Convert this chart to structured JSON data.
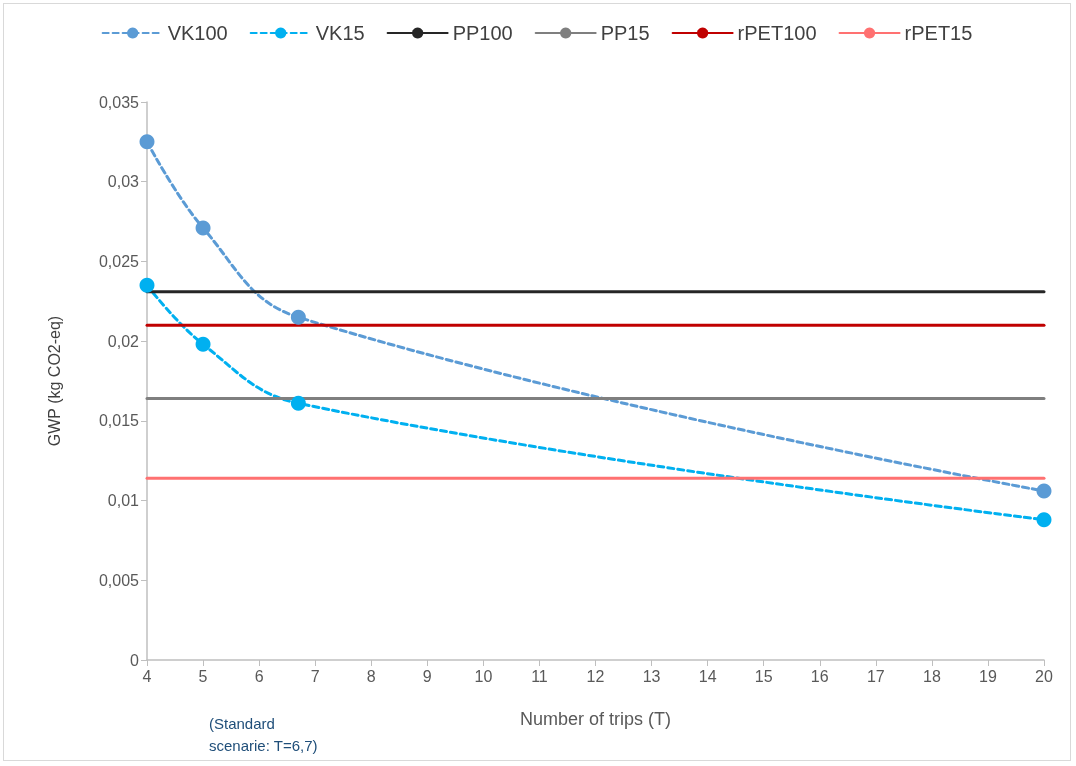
{
  "chart_data": {
    "type": "line",
    "xlabel": "Number of trips (T)",
    "ylabel": "GWP (kg CO2-eq)",
    "annotations": [
      "(Standard scenarie: T=6,7)"
    ],
    "xlim": [
      4,
      20
    ],
    "xticks": [
      4,
      5,
      6,
      7,
      8,
      9,
      10,
      11,
      12,
      13,
      14,
      15,
      16,
      17,
      18,
      19,
      20
    ],
    "ylim": [
      0,
      0.035
    ],
    "yticks": [
      {
        "value": 0,
        "label": "0"
      },
      {
        "value": 0.005,
        "label": "0,005"
      },
      {
        "value": 0.01,
        "label": "0,01"
      },
      {
        "value": 0.015,
        "label": "0,015"
      },
      {
        "value": 0.02,
        "label": "0,02"
      },
      {
        "value": 0.025,
        "label": "0,025"
      },
      {
        "value": 0.03,
        "label": "0,03"
      },
      {
        "value": 0.035,
        "label": "0,035"
      }
    ],
    "grid": false,
    "legend": "top",
    "series": [
      {
        "name": "VK100",
        "color": "#5b9bd5",
        "x": [
          4,
          5,
          6.7,
          20
        ],
        "values": [
          0.0325,
          0.0271,
          0.0215,
          0.0106
        ],
        "marker": "circle",
        "line_style": "dashed"
      },
      {
        "name": "VK15",
        "color": "#00b0f0",
        "x": [
          4,
          5,
          6.7,
          20
        ],
        "values": [
          0.0235,
          0.0198,
          0.0161,
          0.0088
        ],
        "marker": "circle",
        "line_style": "dashed"
      },
      {
        "name": "PP100",
        "color": "#262626",
        "x": [
          4,
          20
        ],
        "values": [
          0.0231,
          0.0231
        ],
        "marker": "none",
        "line_style": "solid"
      },
      {
        "name": "PP15",
        "color": "#7f7f7f",
        "x": [
          4,
          20
        ],
        "values": [
          0.0164,
          0.0164
        ],
        "marker": "none",
        "line_style": "solid"
      },
      {
        "name": "rPET100",
        "color": "#c00000",
        "x": [
          4,
          20
        ],
        "values": [
          0.021,
          0.021
        ],
        "marker": "none",
        "line_style": "solid"
      },
      {
        "name": "rPET15",
        "color": "#ff7171",
        "x": [
          4,
          20
        ],
        "values": [
          0.0114,
          0.0114
        ],
        "marker": "none",
        "line_style": "solid"
      }
    ]
  }
}
